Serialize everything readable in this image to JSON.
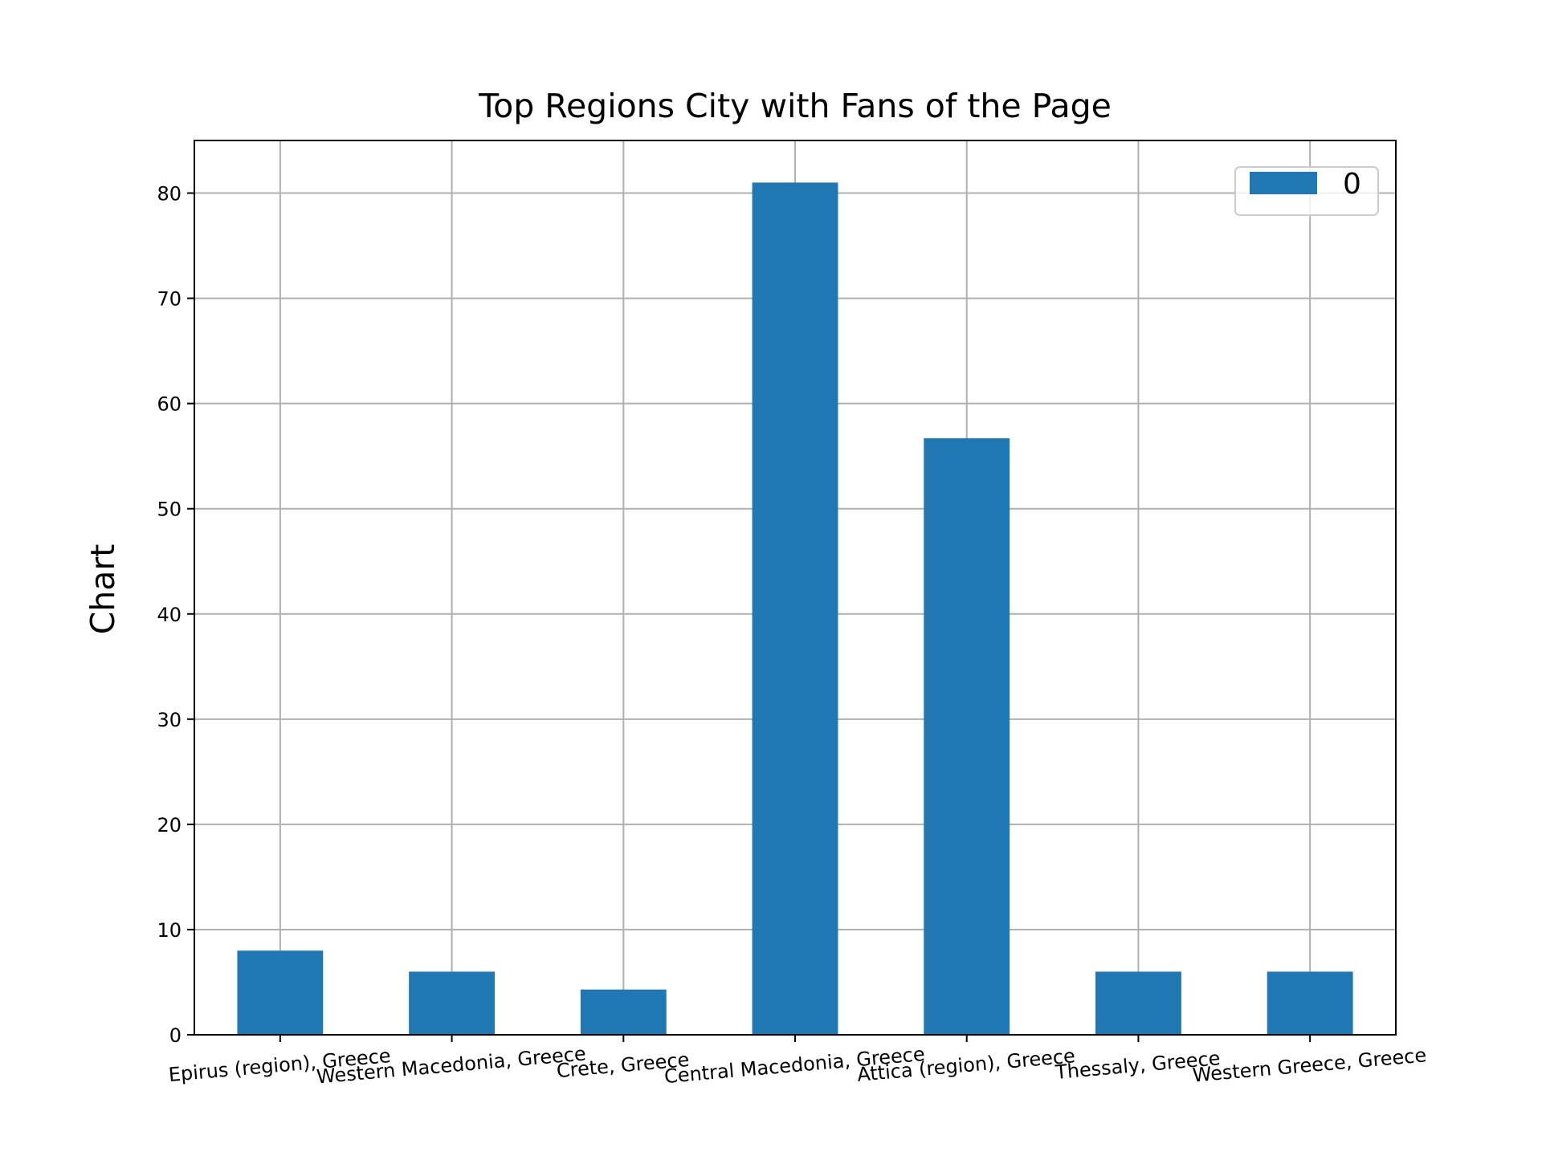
{
  "chart_data": {
    "type": "bar",
    "title": "Top Regions City with Fans of the Page",
    "xlabel": "",
    "ylabel": "Chart",
    "categories": [
      "Epirus (region), Greece",
      "Western Macedonia, Greece",
      "Crete, Greece",
      "Central Macedonia, Greece",
      "Attica (region), Greece",
      "Thessaly, Greece",
      "Western Greece, Greece"
    ],
    "series": [
      {
        "name": "0",
        "values": [
          8,
          6,
          4.3,
          81,
          56.7,
          6,
          6
        ],
        "color": "#1f77b4"
      }
    ],
    "ylim": [
      0,
      85
    ],
    "yticks": [
      0,
      10,
      20,
      30,
      40,
      50,
      60,
      70,
      80
    ],
    "grid": true,
    "legend_position": "top-right"
  }
}
